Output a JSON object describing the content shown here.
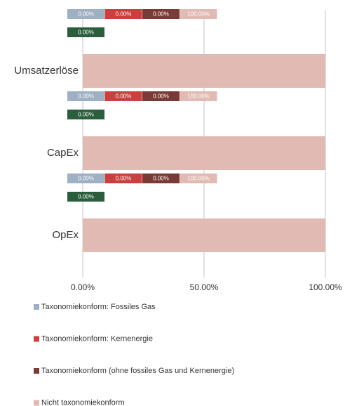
{
  "chart_data": {
    "type": "stacked_bar_horizontal",
    "categories": [
      "Umsatzerlöse",
      "CapEx",
      "OpEx"
    ],
    "series": [
      {
        "name": "Taxonomiekonform: Fossiles Gas",
        "color": "#9fb0c4",
        "values": [
          0,
          0,
          0
        ],
        "value_labels": [
          "0.00%",
          "0.00%",
          "0.00%"
        ]
      },
      {
        "name": "Taxonomiekonform: Kernenergie",
        "color": "#c8403f",
        "values": [
          0,
          0,
          0
        ],
        "value_labels": [
          "0.00%",
          "0.00%",
          "0.00%"
        ]
      },
      {
        "name": "Taxonomiekonform (ohne fossiles Gas und Kernenergie)",
        "color": "#7a3a35",
        "values": [
          0,
          0,
          0
        ],
        "value_labels": [
          "0.00%",
          "0.00%",
          "0.00%"
        ]
      },
      {
        "name": "Nicht taxonomiekonform",
        "color": "#e0bab3",
        "values": [
          100,
          100,
          100
        ],
        "value_labels": [
          "100.00%",
          "100.00%",
          "100.00%"
        ]
      },
      {
        "color": "#2a5e3c",
        "values": [
          0,
          0,
          0
        ],
        "value_labels": [
          "0.00%",
          "0.00%",
          "0.00%"
        ]
      }
    ],
    "xlim": [
      0,
      100
    ],
    "xticks": [
      {
        "value": 0,
        "label": "0.00%"
      },
      {
        "value": 50,
        "label": "50.00%"
      },
      {
        "value": 100,
        "label": "100.00%"
      }
    ],
    "grid": true,
    "legend": "bottom"
  }
}
